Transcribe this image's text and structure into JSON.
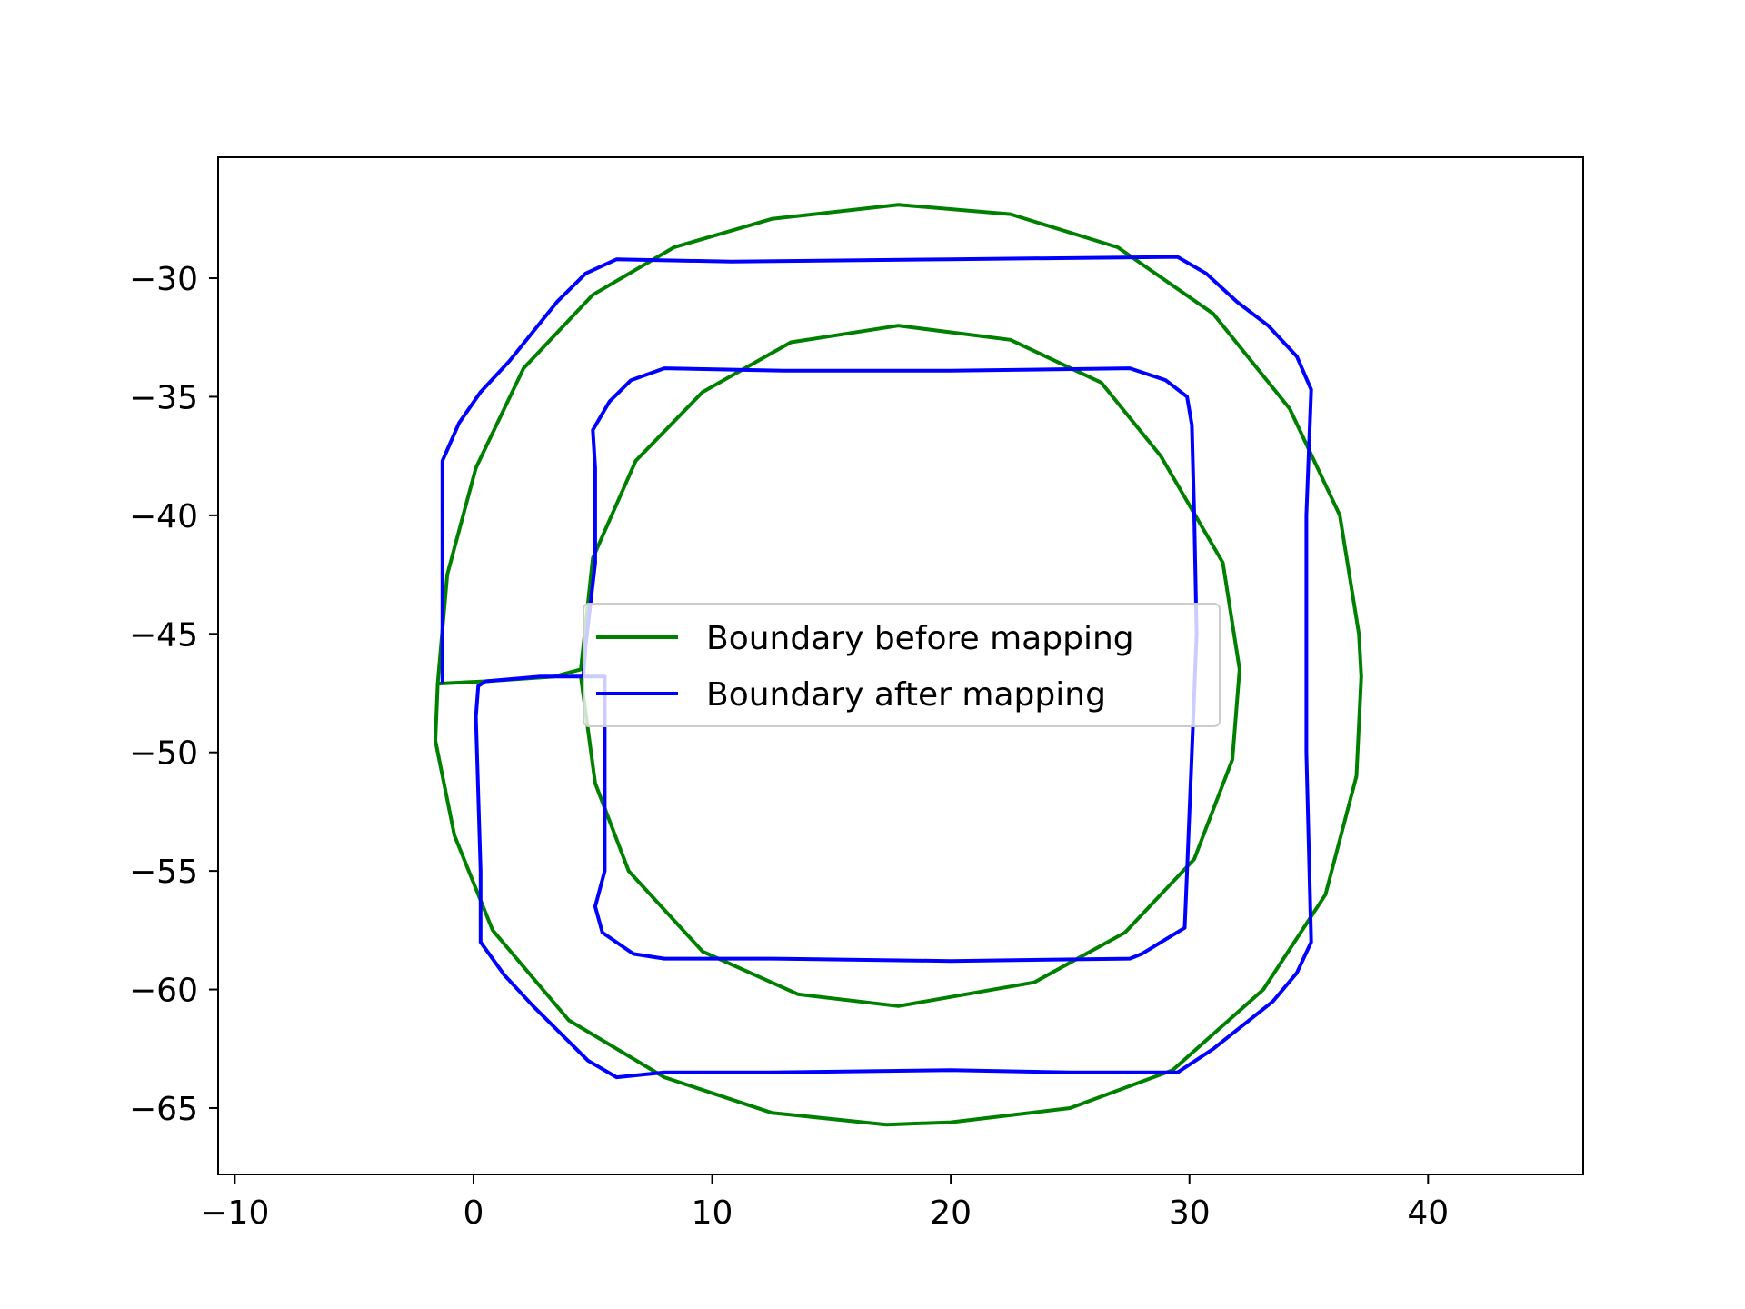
{
  "chart_data": {
    "type": "line",
    "title": "",
    "xlabel": "",
    "ylabel": "",
    "xlim": [
      -10.7,
      46.5
    ],
    "ylim": [
      -67.8,
      -24.9
    ],
    "xticks": [
      -10,
      0,
      10,
      20,
      30,
      40
    ],
    "yticks": [
      -30,
      -35,
      -40,
      -45,
      -50,
      -55,
      -60,
      -65
    ],
    "xtick_labels": [
      "−10",
      "0",
      "10",
      "20",
      "30",
      "40"
    ],
    "ytick_labels": [
      "−30",
      "−35",
      "−40",
      "−45",
      "−50",
      "−55",
      "−60",
      "−65"
    ],
    "grid": false,
    "legend_position": "center",
    "series": [
      {
        "name": "Boundary before mapping",
        "color": "#008000",
        "points": [
          [
            -1.5,
            -47.1
          ],
          [
            -1.1,
            -42.5
          ],
          [
            0.1,
            -38.0
          ],
          [
            2.1,
            -33.8
          ],
          [
            5.0,
            -30.7
          ],
          [
            8.4,
            -28.7
          ],
          [
            12.5,
            -27.5
          ],
          [
            17.8,
            -26.9
          ],
          [
            22.5,
            -27.3
          ],
          [
            27.0,
            -28.7
          ],
          [
            31.0,
            -31.5
          ],
          [
            34.2,
            -35.5
          ],
          [
            36.3,
            -40.0
          ],
          [
            37.1,
            -45.0
          ],
          [
            37.2,
            -46.8
          ],
          [
            37.0,
            -51.0
          ],
          [
            35.7,
            -56.0
          ],
          [
            33.1,
            -60.0
          ],
          [
            29.3,
            -63.4
          ],
          [
            25.0,
            -65.0
          ],
          [
            20.0,
            -65.6
          ],
          [
            17.3,
            -65.7
          ],
          [
            12.5,
            -65.2
          ],
          [
            8.0,
            -63.7
          ],
          [
            4.0,
            -61.3
          ],
          [
            0.8,
            -57.5
          ],
          [
            -0.8,
            -53.5
          ],
          [
            -1.6,
            -49.5
          ],
          [
            -1.5,
            -47.1
          ],
          [
            0.5,
            -47.0
          ],
          [
            3.4,
            -46.8
          ],
          [
            4.5,
            -46.5
          ],
          [
            5.0,
            -41.8
          ],
          [
            6.8,
            -37.7
          ],
          [
            9.6,
            -34.8
          ],
          [
            13.3,
            -32.7
          ],
          [
            17.8,
            -32.0
          ],
          [
            22.5,
            -32.6
          ],
          [
            26.3,
            -34.4
          ],
          [
            28.8,
            -37.5
          ],
          [
            31.4,
            -42.0
          ],
          [
            32.1,
            -46.5
          ],
          [
            31.8,
            -50.3
          ],
          [
            30.2,
            -54.5
          ],
          [
            27.3,
            -57.6
          ],
          [
            23.5,
            -59.7
          ],
          [
            17.8,
            -60.7
          ],
          [
            13.6,
            -60.2
          ],
          [
            9.6,
            -58.4
          ],
          [
            6.5,
            -55.0
          ],
          [
            5.1,
            -51.3
          ],
          [
            4.5,
            -46.8
          ]
        ]
      },
      {
        "name": "Boundary after mapping",
        "color": "#0000ff",
        "points": [
          [
            -1.3,
            -47.0
          ],
          [
            -1.3,
            -37.7
          ],
          [
            -0.6,
            -36.1
          ],
          [
            0.3,
            -34.8
          ],
          [
            1.5,
            -33.5
          ],
          [
            3.5,
            -31.0
          ],
          [
            4.7,
            -29.8
          ],
          [
            6.0,
            -29.2
          ],
          [
            10.8,
            -29.3
          ],
          [
            20.0,
            -29.2
          ],
          [
            29.5,
            -29.1
          ],
          [
            30.7,
            -29.8
          ],
          [
            32.0,
            -31.0
          ],
          [
            33.3,
            -32.0
          ],
          [
            34.5,
            -33.3
          ],
          [
            35.1,
            -34.7
          ],
          [
            34.9,
            -40.0
          ],
          [
            34.9,
            -50.0
          ],
          [
            35.1,
            -58.0
          ],
          [
            34.5,
            -59.3
          ],
          [
            33.5,
            -60.5
          ],
          [
            31.0,
            -62.5
          ],
          [
            29.5,
            -63.5
          ],
          [
            25.0,
            -63.5
          ],
          [
            20.0,
            -63.4
          ],
          [
            12.5,
            -63.5
          ],
          [
            8.0,
            -63.5
          ],
          [
            6.0,
            -63.7
          ],
          [
            4.8,
            -63.0
          ],
          [
            2.5,
            -60.7
          ],
          [
            1.3,
            -59.4
          ],
          [
            0.3,
            -58.0
          ],
          [
            0.3,
            -55.0
          ],
          [
            0.1,
            -48.5
          ],
          [
            0.2,
            -47.2
          ],
          [
            0.5,
            -47.0
          ],
          [
            2.8,
            -46.8
          ],
          [
            5.5,
            -46.8
          ],
          [
            5.5,
            -50.0
          ],
          [
            5.5,
            -55.0
          ],
          [
            5.1,
            -56.5
          ],
          [
            5.4,
            -57.6
          ],
          [
            6.7,
            -58.5
          ],
          [
            8.0,
            -58.7
          ],
          [
            12.5,
            -58.7
          ],
          [
            20.0,
            -58.8
          ],
          [
            27.5,
            -58.7
          ],
          [
            28.0,
            -58.5
          ],
          [
            29.8,
            -57.4
          ],
          [
            29.9,
            -55.0
          ],
          [
            30.1,
            -50.0
          ],
          [
            30.3,
            -45.0
          ],
          [
            30.2,
            -40.0
          ],
          [
            30.1,
            -36.2
          ],
          [
            29.9,
            -35.0
          ],
          [
            29.0,
            -34.3
          ],
          [
            27.5,
            -33.8
          ],
          [
            20.0,
            -33.9
          ],
          [
            13.0,
            -33.9
          ],
          [
            8.0,
            -33.8
          ],
          [
            6.6,
            -34.3
          ],
          [
            5.7,
            -35.2
          ],
          [
            5.0,
            -36.4
          ],
          [
            5.1,
            -38.0
          ],
          [
            5.1,
            -42.0
          ],
          [
            4.7,
            -45.5
          ],
          [
            4.6,
            -46.8
          ]
        ]
      }
    ]
  }
}
